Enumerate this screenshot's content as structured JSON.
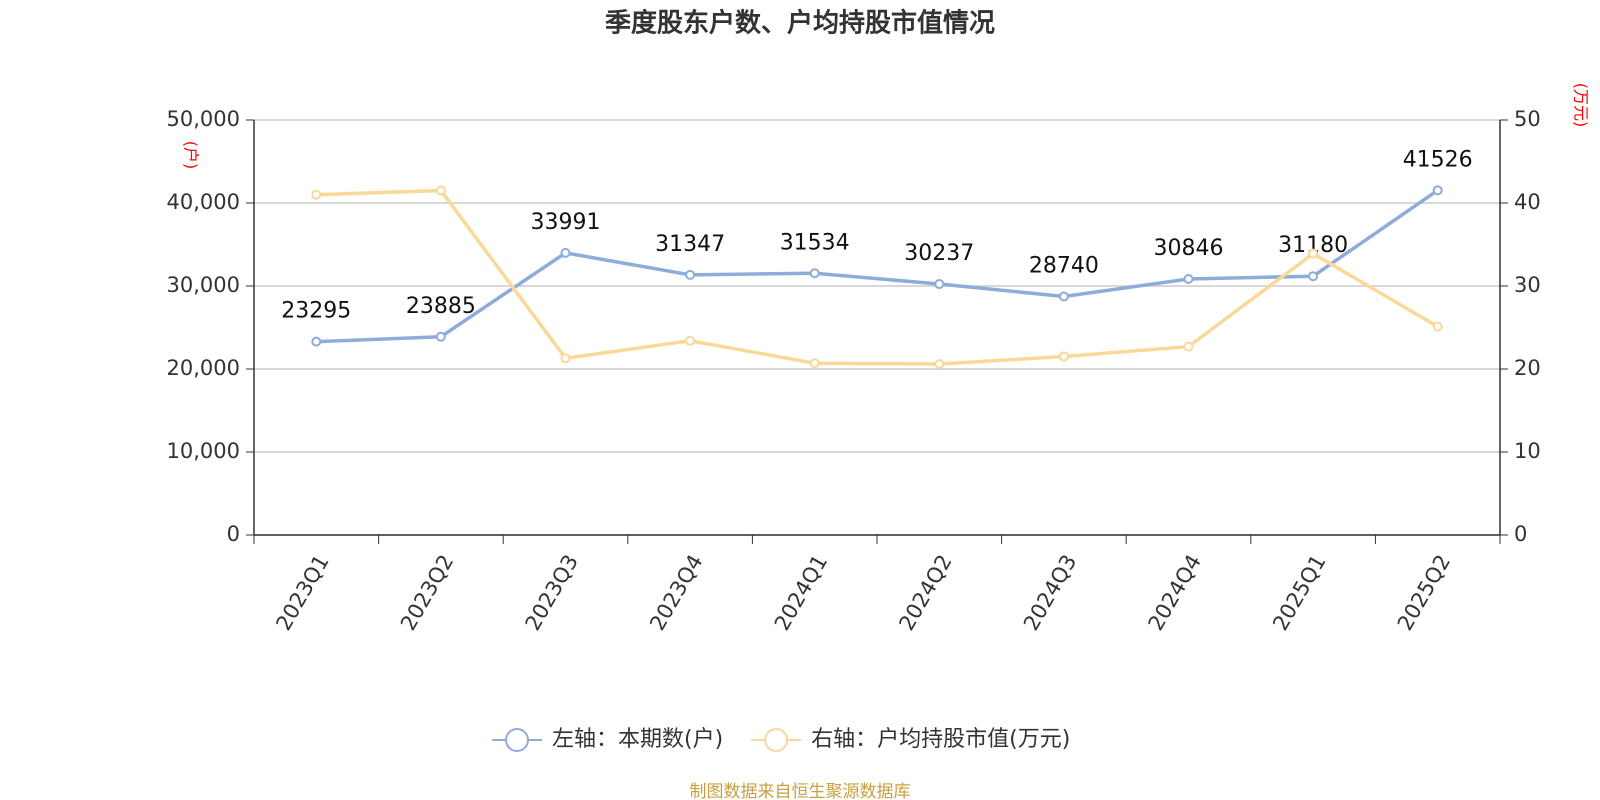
{
  "chart_data": {
    "type": "line",
    "title": "季度股东户数、户均持股市值情况",
    "y_label": "(户)",
    "y2_label": "(万元)",
    "axis_label_color": "#ff0000",
    "categories": [
      "2023Q1",
      "2023Q2",
      "2023Q3",
      "2023Q4",
      "2024Q1",
      "2024Q2",
      "2024Q3",
      "2024Q4",
      "2025Q1",
      "2025Q2"
    ],
    "series": [
      {
        "name": "左轴：本期数(户)",
        "color": "#8eacd9",
        "values": [
          23295,
          23885,
          33991,
          31347,
          31534,
          30237,
          28740,
          30846,
          31180,
          41526
        ],
        "show_labels": true
      },
      {
        "name": "右轴：户均持股市值(万元)",
        "color": "#fbd898",
        "axis": "y2",
        "values": [
          41.0,
          41.5,
          21.3,
          23.4,
          20.7,
          20.6,
          21.5,
          22.7,
          33.9,
          25.1
        ]
      }
    ],
    "ylim": [
      0,
      50000
    ],
    "yticks": [
      0,
      {
        "value": 10000,
        "label": "10,000"
      },
      {
        "value": 20000,
        "label": "20,000"
      },
      {
        "value": 30000,
        "label": "30,000"
      },
      {
        "value": 40000,
        "label": "40,000"
      },
      {
        "value": 50000,
        "label": "50,000"
      }
    ],
    "y2lim": [
      0,
      50
    ],
    "y2ticks": [
      0,
      10,
      20,
      30,
      40,
      50
    ],
    "grid": true,
    "legend": "bottom",
    "source": "制图数据来自恒生聚源数据库",
    "source_color": "#c8a040"
  }
}
